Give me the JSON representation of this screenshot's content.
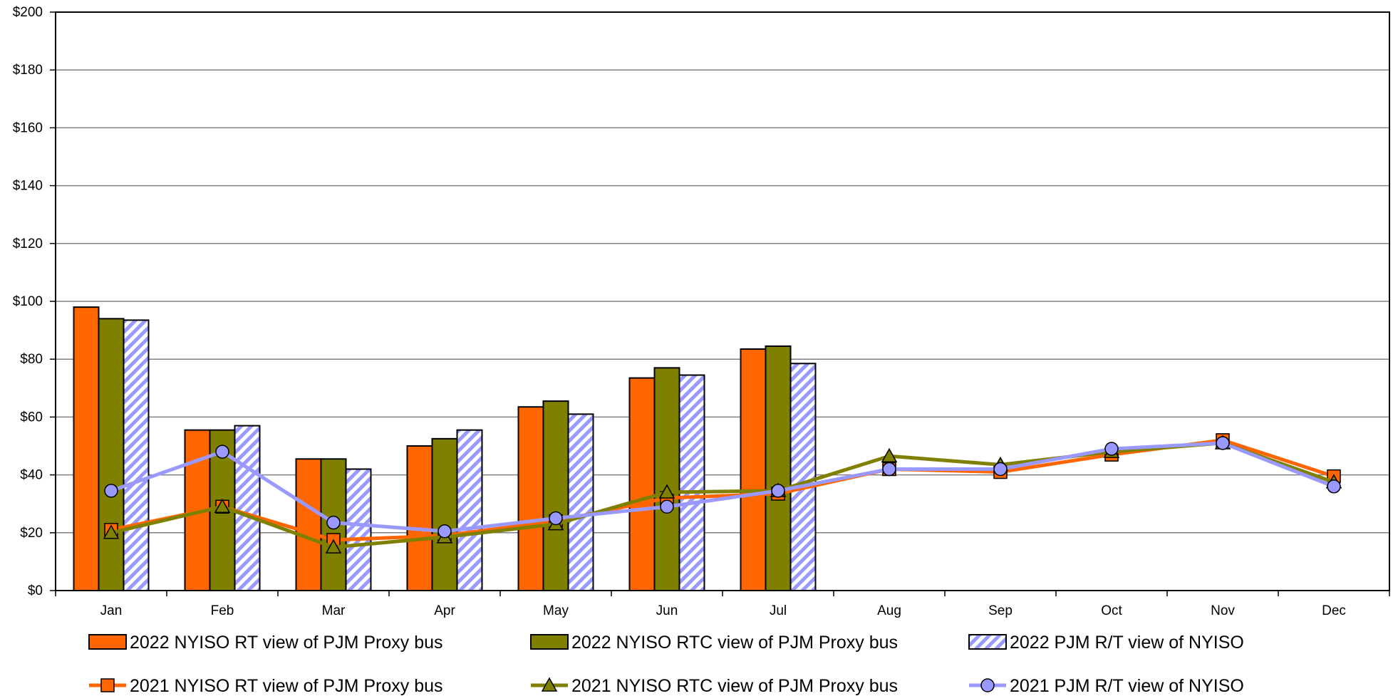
{
  "chart_data": {
    "type": "bar",
    "title": "",
    "xlabel": "",
    "ylabel": "",
    "categories": [
      "Jan",
      "Feb",
      "Mar",
      "Apr",
      "May",
      "Jun",
      "Jul",
      "Aug",
      "Sep",
      "Oct",
      "Nov",
      "Dec"
    ],
    "ylim": [
      0,
      200
    ],
    "yticks": [
      0,
      20,
      40,
      60,
      80,
      100,
      120,
      140,
      160,
      180,
      200
    ],
    "ytick_labels": [
      "$0",
      "$20",
      "$40",
      "$60",
      "$80",
      "$100",
      "$120",
      "$140",
      "$160",
      "$180",
      "$200"
    ],
    "grid": true,
    "legend_position": "bottom",
    "bar_series": [
      {
        "name": "2022 NYISO RT view of PJM Proxy bus",
        "color": "#ff6600",
        "pattern": "solid",
        "values": [
          98,
          55.5,
          45.5,
          50,
          63.5,
          73.5,
          83.5,
          null,
          null,
          null,
          null,
          null
        ]
      },
      {
        "name": "2022 NYISO RTC view of PJM Proxy bus",
        "color": "#808000",
        "pattern": "solid",
        "values": [
          94,
          55.5,
          45.5,
          52.5,
          65.5,
          77,
          84.5,
          null,
          null,
          null,
          null,
          null
        ]
      },
      {
        "name": "2022 PJM R/T view of NYISO",
        "color": "#9999ff",
        "pattern": "hatched",
        "values": [
          93.5,
          57,
          42,
          55.5,
          61,
          74.5,
          78.5,
          null,
          null,
          null,
          null,
          null
        ]
      }
    ],
    "line_series": [
      {
        "name": "2021 NYISO RT view of PJM Proxy bus",
        "color": "#ff6600",
        "marker": "square",
        "values": [
          21,
          29,
          17.5,
          19,
          24,
          32,
          33.5,
          42,
          41,
          47,
          52,
          39.5
        ]
      },
      {
        "name": "2021 NYISO RTC view of PJM Proxy bus",
        "color": "#808000",
        "marker": "triangle",
        "values": [
          20,
          29,
          15,
          18.5,
          23,
          34,
          34.5,
          46.5,
          43.5,
          48,
          51,
          37.5
        ]
      },
      {
        "name": "2021 PJM R/T view of NYISO",
        "color": "#9999ff",
        "marker": "circle",
        "values": [
          34.5,
          48,
          23.5,
          20.5,
          25,
          29,
          34.5,
          42,
          42,
          49,
          51,
          36
        ]
      }
    ]
  }
}
